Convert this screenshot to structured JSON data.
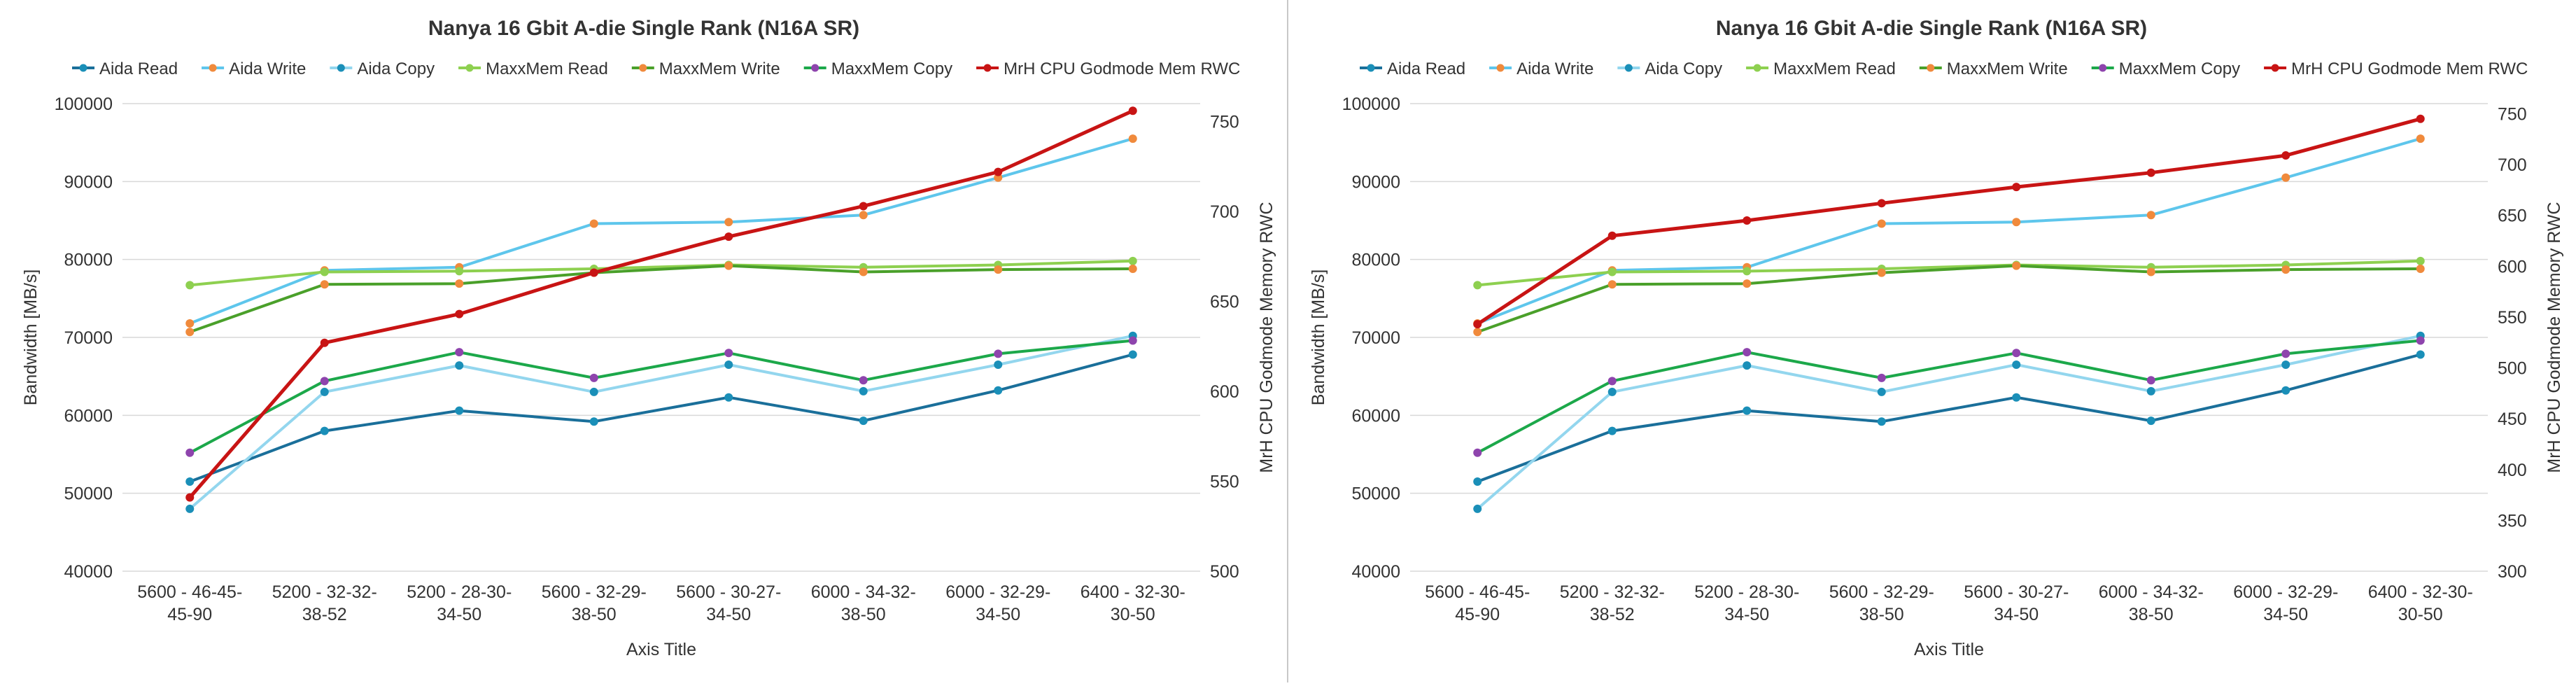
{
  "chart_data": [
    {
      "type": "line",
      "title": "Nanya 16 Gbit A-die Single Rank  (N16A SR)",
      "xlabel": "Axis Title",
      "ylabel": "Bandwidth [MB/s]",
      "y2label": "MrH CPU Godmode Memory RWC",
      "ylim": [
        40000,
        100000
      ],
      "y2lim": [
        500,
        760
      ],
      "yticks": [
        "40000",
        "50000",
        "60000",
        "70000",
        "80000",
        "90000",
        "100000"
      ],
      "y2ticks": [
        "500",
        "550",
        "600",
        "650",
        "700",
        "750"
      ],
      "grid": true,
      "legend": "top",
      "categories": [
        [
          "5600 - 46-45-",
          "45-90"
        ],
        [
          "5200 - 32-32-",
          "38-52"
        ],
        [
          "5200 - 28-30-",
          "34-50"
        ],
        [
          "5600 - 32-29-",
          "38-50"
        ],
        [
          "5600 - 30-27-",
          "34-50"
        ],
        [
          "6000 - 34-32-",
          "38-50"
        ],
        [
          "6000 - 32-29-",
          "34-50"
        ],
        [
          "6400 - 32-30-",
          "30-50"
        ]
      ],
      "series": [
        {
          "name": "Aida Read",
          "color": "#1a6f9a",
          "marker": "#1a8fb8",
          "axis": "y",
          "values": [
            51500,
            58000,
            60600,
            59200,
            62300,
            59300,
            63200,
            67800
          ]
        },
        {
          "name": "Aida Write",
          "color": "#5ec6ec",
          "marker": "#f08a3c",
          "axis": "y",
          "values": [
            71800,
            78600,
            79000,
            84600,
            84800,
            85700,
            90500,
            95500
          ]
        },
        {
          "name": "Aida Copy",
          "color": "#93d6ee",
          "marker": "#1a8fb8",
          "axis": "y",
          "values": [
            48000,
            63000,
            66400,
            63000,
            66500,
            63100,
            66500,
            70200
          ]
        },
        {
          "name": "MaxxMem Read",
          "color": "#8ed050",
          "marker": "#8ed050",
          "axis": "y",
          "values": [
            76700,
            78400,
            78500,
            78800,
            79300,
            79000,
            79300,
            79800
          ]
        },
        {
          "name": "MaxxMem Write",
          "color": "#4aa02a",
          "marker": "#f08a3c",
          "axis": "y",
          "values": [
            70700,
            76800,
            76900,
            78300,
            79200,
            78400,
            78700,
            78800
          ]
        },
        {
          "name": "MaxxMem Copy",
          "color": "#1ca84a",
          "marker": "#8e44ad",
          "axis": "y",
          "values": [
            55200,
            64400,
            68100,
            64800,
            68000,
            64500,
            67900,
            69600
          ]
        },
        {
          "name": "MrH CPU Godmode Mem RWC",
          "color": "#c81414",
          "marker": "#c81414",
          "axis": "y2",
          "values": [
            541,
            627,
            643,
            666,
            686,
            703,
            722,
            756
          ]
        }
      ]
    },
    {
      "type": "line",
      "title": "Nanya 16 Gbit A-die Single Rank  (N16A SR)",
      "xlabel": "Axis Title",
      "ylabel": "Bandwidth [MB/s]",
      "y2label": "MrH CPU Godmode Memory RWC",
      "ylim": [
        40000,
        100000
      ],
      "y2lim": [
        300,
        760
      ],
      "yticks": [
        "40000",
        "50000",
        "60000",
        "70000",
        "80000",
        "90000",
        "100000"
      ],
      "y2ticks": [
        "300",
        "350",
        "400",
        "450",
        "500",
        "550",
        "600",
        "650",
        "700",
        "750"
      ],
      "grid": true,
      "legend": "top",
      "categories": [
        [
          "5600 - 46-45-",
          "45-90"
        ],
        [
          "5200 - 32-32-",
          "38-52"
        ],
        [
          "5200 - 28-30-",
          "34-50"
        ],
        [
          "5600 - 32-29-",
          "38-50"
        ],
        [
          "5600 - 30-27-",
          "34-50"
        ],
        [
          "6000 - 34-32-",
          "38-50"
        ],
        [
          "6000 - 32-29-",
          "34-50"
        ],
        [
          "6400 - 32-30-",
          "30-50"
        ]
      ],
      "series": [
        {
          "name": "Aida Read",
          "color": "#1a6f9a",
          "marker": "#1a8fb8",
          "axis": "y",
          "values": [
            51500,
            58000,
            60600,
            59200,
            62300,
            59300,
            63200,
            67800
          ]
        },
        {
          "name": "Aida Write",
          "color": "#5ec6ec",
          "marker": "#f08a3c",
          "axis": "y",
          "values": [
            71800,
            78600,
            79000,
            84600,
            84800,
            85700,
            90500,
            95500
          ]
        },
        {
          "name": "Aida Copy",
          "color": "#93d6ee",
          "marker": "#1a8fb8",
          "axis": "y",
          "values": [
            48000,
            63000,
            66400,
            63000,
            66500,
            63100,
            66500,
            70200
          ]
        },
        {
          "name": "MaxxMem Read",
          "color": "#8ed050",
          "marker": "#8ed050",
          "axis": "y",
          "values": [
            76700,
            78400,
            78500,
            78800,
            79300,
            79000,
            79300,
            79800
          ]
        },
        {
          "name": "MaxxMem Write",
          "color": "#4aa02a",
          "marker": "#f08a3c",
          "axis": "y",
          "values": [
            70700,
            76800,
            76900,
            78300,
            79200,
            78400,
            78700,
            78800
          ]
        },
        {
          "name": "MaxxMem Copy",
          "color": "#1ca84a",
          "marker": "#8e44ad",
          "axis": "y",
          "values": [
            55200,
            64400,
            68100,
            64800,
            68000,
            64500,
            67900,
            69600
          ]
        },
        {
          "name": "MrH CPU Godmode Mem RWC",
          "color": "#c81414",
          "marker": "#c81414",
          "axis": "y2",
          "values": [
            543,
            630,
            645,
            662,
            678,
            692,
            709,
            745
          ]
        }
      ]
    }
  ]
}
